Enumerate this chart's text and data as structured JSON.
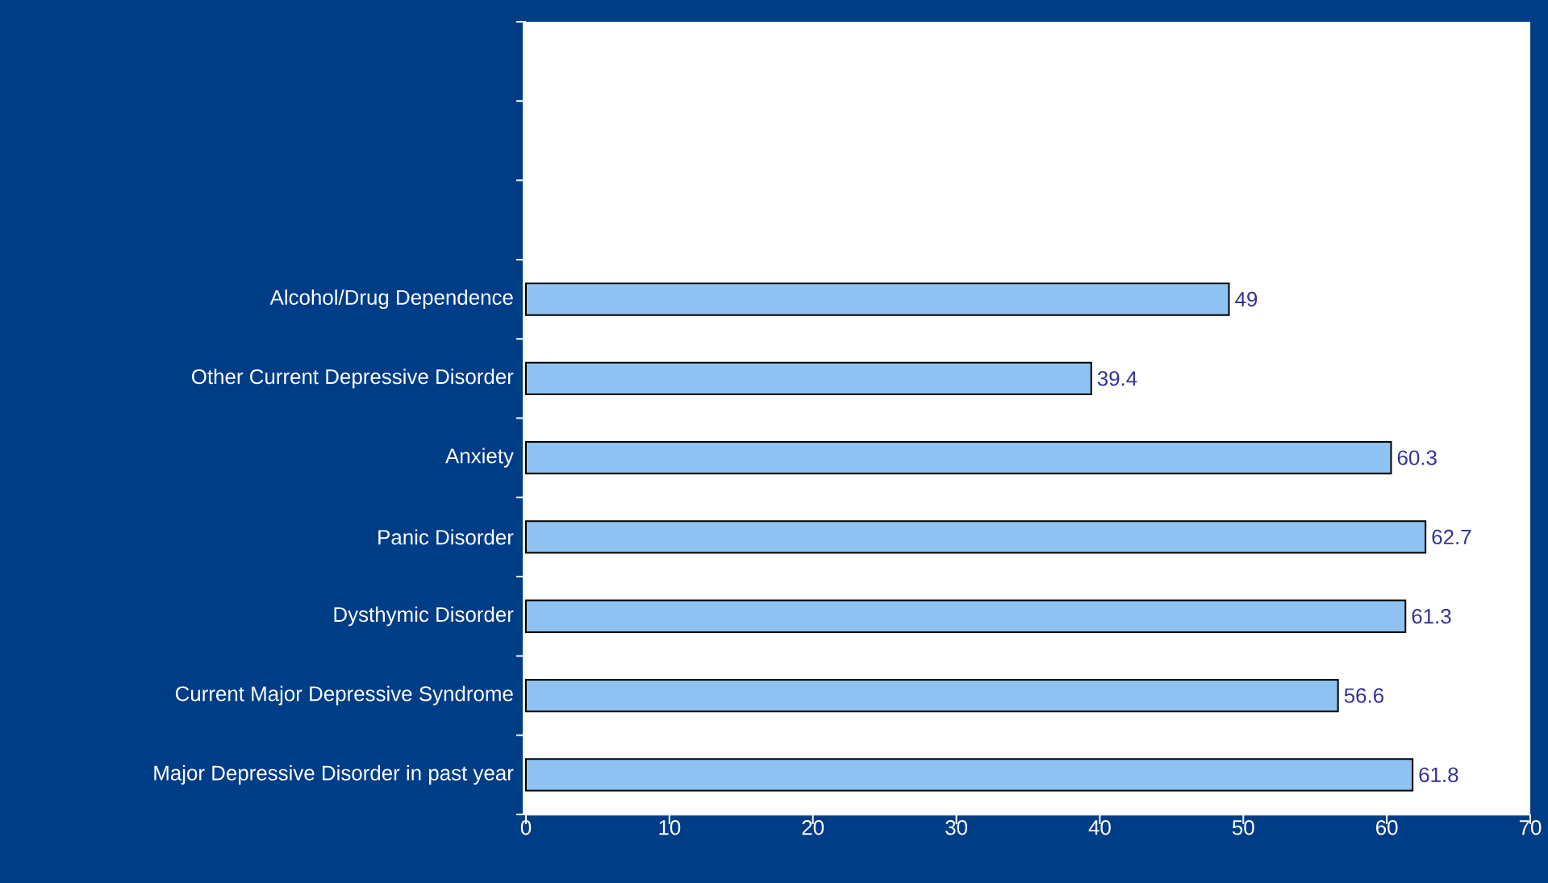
{
  "chart_data": {
    "type": "bar",
    "orientation": "horizontal",
    "categories": [
      null,
      null,
      null,
      "Alcohol/Drug Dependence",
      "Other Current Depressive Disorder",
      "Anxiety",
      "Panic Disorder",
      "Dysthymic Disorder",
      "Current Major Depressive Syndrome",
      "Major Depressive Disorder in past year"
    ],
    "values": [
      null,
      null,
      null,
      49,
      39.4,
      60.3,
      62.7,
      61.3,
      56.6,
      61.8
    ],
    "value_labels": [
      null,
      null,
      null,
      "49",
      "39.4",
      "60.3",
      "62.7",
      "61.3",
      "56.6",
      "61.8"
    ],
    "color": "#8ec2f2",
    "xlim": [
      0,
      70
    ],
    "xticks": [
      0,
      10,
      20,
      30,
      40,
      50,
      60,
      70
    ],
    "grid": false
  }
}
